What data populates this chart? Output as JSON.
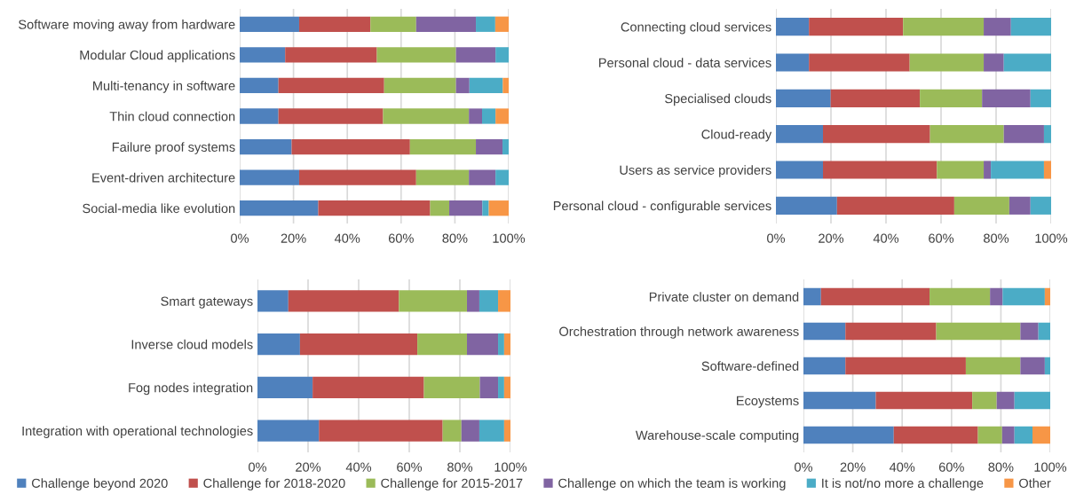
{
  "chart_data": [
    {
      "type": "bar",
      "orientation": "horizontal",
      "stacked": true,
      "grid": "x",
      "legend": "bottom",
      "categories": [
        "Software moving away from hardware",
        "Modular Cloud applications",
        "Multi-tenancy in software",
        "Thin cloud connection",
        "Failure proof systems",
        "Event-driven architecture",
        "Social-media like evolution"
      ],
      "xlim": [
        0,
        100
      ],
      "xticks": [
        {
          "value": 0,
          "label": "0%"
        },
        {
          "value": 20,
          "label": "20%"
        },
        {
          "value": 40,
          "label": "40%"
        },
        {
          "value": 60,
          "label": "60%"
        },
        {
          "value": 80,
          "label": "80%"
        },
        {
          "value": 100,
          "label": "100%"
        }
      ],
      "series": [
        {
          "name": "Challenge beyond 2020",
          "color": "#4f81bd",
          "values": [
            22.1,
            16.9,
            14.4,
            14.4,
            19.3,
            22.1,
            29.2
          ]
        },
        {
          "name": "Challenge for 2018-2020",
          "color": "#c0504d",
          "values": [
            26.5,
            34.1,
            39.3,
            38.9,
            44.0,
            43.5,
            41.6
          ]
        },
        {
          "name": "Challenge for 2015-2017",
          "color": "#9bbb59",
          "values": [
            17.0,
            29.4,
            26.7,
            31.9,
            24.5,
            19.6,
            7.1
          ]
        },
        {
          "name": "Challenge on which the team is working",
          "color": "#8064a2",
          "values": [
            22.2,
            14.7,
            5.0,
            4.9,
            9.9,
            9.9,
            12.3
          ]
        },
        {
          "name": "It is not/no more a challenge",
          "color": "#4bacc6",
          "values": [
            7.2,
            4.9,
            12.4,
            5.0,
            2.3,
            4.9,
            2.4
          ]
        },
        {
          "name": "Other",
          "color": "#f79646",
          "values": [
            5.0,
            0,
            2.2,
            4.9,
            0,
            0,
            7.4
          ]
        }
      ]
    },
    {
      "type": "bar",
      "orientation": "horizontal",
      "stacked": true,
      "grid": "x",
      "categories": [
        "Connecting cloud services",
        "Personal cloud - data services",
        "Specialised clouds",
        "Cloud-ready",
        "Users as service providers",
        "Personal cloud - configurable services"
      ],
      "xlim": [
        0,
        100
      ],
      "xticks": [
        {
          "value": 0,
          "label": "0%"
        },
        {
          "value": 20,
          "label": "20%"
        },
        {
          "value": 40,
          "label": "40%"
        },
        {
          "value": 60,
          "label": "60%"
        },
        {
          "value": 80,
          "label": "80%"
        },
        {
          "value": 100,
          "label": "100%"
        }
      ],
      "series": [
        {
          "color": "#4f81bd",
          "values": [
            12.0,
            12.0,
            19.9,
            17.1,
            17.1,
            22.2
          ]
        },
        {
          "color": "#c0504d",
          "values": [
            34.2,
            36.6,
            32.4,
            38.9,
            41.4,
            42.6
          ]
        },
        {
          "color": "#9bbb59",
          "values": [
            29.3,
            26.9,
            22.6,
            26.8,
            17.0,
            20.0
          ]
        },
        {
          "color": "#8064a2",
          "values": [
            9.9,
            7.3,
            17.6,
            14.6,
            2.6,
            7.7
          ]
        },
        {
          "color": "#4bacc6",
          "values": [
            14.6,
            17.2,
            7.5,
            2.6,
            19.3,
            7.5
          ]
        },
        {
          "color": "#f79646",
          "values": [
            0,
            0,
            0,
            0,
            2.6,
            0
          ]
        }
      ]
    },
    {
      "type": "bar",
      "orientation": "horizontal",
      "stacked": true,
      "grid": "x",
      "categories": [
        "Smart gateways",
        "Inverse cloud models",
        "Fog nodes integration",
        "Integration with operational technologies"
      ],
      "xlim": [
        0,
        100
      ],
      "xticks": [
        {
          "value": 0,
          "label": "0%"
        },
        {
          "value": 20,
          "label": "20%"
        },
        {
          "value": 40,
          "label": "40%"
        },
        {
          "value": 60,
          "label": "60%"
        },
        {
          "value": 80,
          "label": "80%"
        },
        {
          "value": 100,
          "label": "100%"
        }
      ],
      "series": [
        {
          "color": "#4f81bd",
          "values": [
            12.2,
            16.8,
            21.8,
            24.3
          ]
        },
        {
          "color": "#c0504d",
          "values": [
            43.7,
            46.4,
            44.0,
            48.9
          ]
        },
        {
          "color": "#9bbb59",
          "values": [
            26.9,
            19.6,
            22.1,
            7.4
          ]
        },
        {
          "color": "#8064a2",
          "values": [
            4.9,
            12.3,
            7.2,
            7.1
          ]
        },
        {
          "color": "#4bacc6",
          "values": [
            7.4,
            2.4,
            2.4,
            9.8
          ]
        },
        {
          "color": "#f79646",
          "values": [
            4.9,
            2.5,
            2.5,
            2.5
          ]
        }
      ]
    },
    {
      "type": "bar",
      "orientation": "horizontal",
      "stacked": true,
      "grid": "x",
      "categories": [
        "Private cluster on demand",
        "Orchestration through network awareness",
        "Software-defined",
        "Ecoystems",
        "Warehouse-scale computing"
      ],
      "xlim": [
        0,
        100
      ],
      "xticks": [
        {
          "value": 0,
          "label": "0%"
        },
        {
          "value": 20,
          "label": "20%"
        },
        {
          "value": 40,
          "label": "40%"
        },
        {
          "value": 60,
          "label": "60%"
        },
        {
          "value": 80,
          "label": "80%"
        },
        {
          "value": 100,
          "label": "100%"
        }
      ],
      "series": [
        {
          "color": "#4f81bd",
          "values": [
            7.1,
            17.0,
            17.0,
            29.3,
            36.6
          ]
        },
        {
          "color": "#c0504d",
          "values": [
            44.0,
            36.8,
            48.8,
            39.1,
            34.1
          ]
        },
        {
          "color": "#9bbb59",
          "values": [
            24.5,
            34.1,
            22.1,
            9.9,
            9.8
          ]
        },
        {
          "color": "#8064a2",
          "values": [
            5.1,
            7.3,
            9.9,
            7.2,
            5.0
          ]
        },
        {
          "color": "#4bacc6",
          "values": [
            17.1,
            4.8,
            2.2,
            14.5,
            7.3
          ]
        },
        {
          "color": "#f79646",
          "values": [
            2.2,
            0,
            0,
            0,
            7.2
          ]
        }
      ]
    }
  ]
}
